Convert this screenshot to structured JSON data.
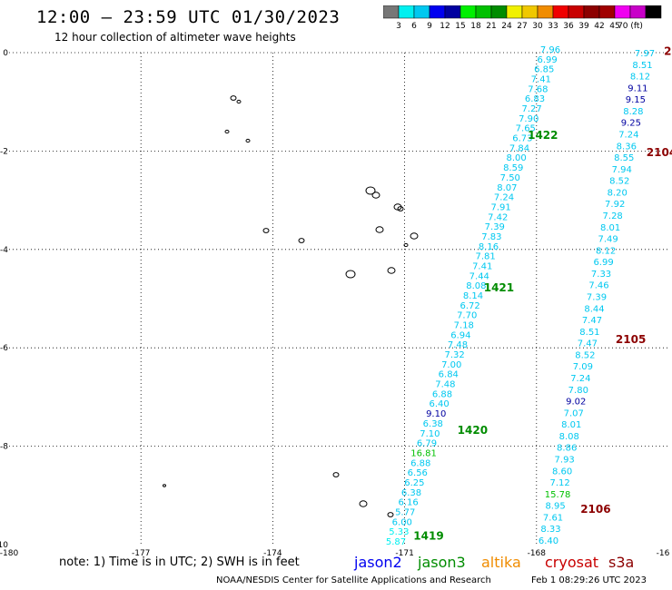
{
  "title": "12:00 – 23:59 UTC 01/30/2023",
  "subtitle": "12 hour collection of altimeter wave heights",
  "colorbar": {
    "colors": [
      "#777777",
      "#00f0f0",
      "#00c8f0",
      "#0000f0",
      "#0000a0",
      "#00f000",
      "#00c000",
      "#008c00",
      "#f0f000",
      "#f0c800",
      "#f08c00",
      "#f00000",
      "#c80000",
      "#8c0000",
      "#a00000",
      "#f000f0",
      "#c800c8",
      "#000000"
    ],
    "labels": [
      "3",
      "6",
      "9",
      "12",
      "15",
      "18",
      "21",
      "24",
      "27",
      "30",
      "33",
      "36",
      "39",
      "42",
      "45",
      "70 (ft)"
    ]
  },
  "axes": {
    "x_ticks": [
      "-180",
      "-177",
      "-174",
      "-171",
      "-168",
      "-16"
    ],
    "y_ticks": [
      "0",
      "-2",
      "-4",
      "-6",
      "-8",
      "-10"
    ],
    "x_range": [
      -180,
      -165
    ],
    "y_range": [
      -10,
      0
    ]
  },
  "passes": [
    {
      "label": "1422",
      "lon": -168.2,
      "lat": -1.75,
      "color": "#008c00"
    },
    {
      "label": "1421",
      "lon": -169.2,
      "lat": -4.85,
      "color": "#008c00"
    },
    {
      "label": "1420",
      "lon": -169.8,
      "lat": -7.75,
      "color": "#008c00"
    },
    {
      "label": "1419",
      "lon": -170.8,
      "lat": -9.9,
      "color": "#008c00"
    },
    {
      "label": "2104",
      "lon": -165.5,
      "lat": -2.1,
      "color": "#8c0000"
    },
    {
      "label": "2105",
      "lon": -166.2,
      "lat": -5.9,
      "color": "#8c0000"
    },
    {
      "label": "2106",
      "lon": -167.0,
      "lat": -9.35,
      "color": "#8c0000"
    },
    {
      "label": "2",
      "lon": -165.1,
      "lat": -0.05,
      "color": "#8c0000"
    }
  ],
  "track_a": {
    "values": [
      "7.96",
      "6.99",
      "6.85",
      "7.41",
      "7.68",
      "6.83",
      "7.27",
      "7.90",
      "7.65",
      "6.73",
      "7.84",
      "8.00",
      "8.59",
      "7.50",
      "8.07",
      "7.24",
      "7.91",
      "7.42",
      "7.39",
      "7.83",
      "8.16",
      "7.81",
      "7.41",
      "7.44",
      "8.08",
      "8.14",
      "6.72",
      "7.70",
      "7.18",
      "6.94",
      "7.48",
      "7.32",
      "7.00",
      "6.84",
      "7.48",
      "6.88",
      "6.40",
      "9.10",
      "6.38",
      "7.10",
      "6.79",
      "16.81",
      "6.88",
      "6.56",
      "6.25",
      "6.38",
      "6.16",
      "5.77",
      "6.00",
      "5.33",
      "5.87"
    ],
    "colors": [
      "#00c8f0",
      "#00c8f0",
      "#00c8f0",
      "#00c8f0",
      "#00c8f0",
      "#00c8f0",
      "#00c8f0",
      "#00c8f0",
      "#00c8f0",
      "#00c8f0",
      "#00c8f0",
      "#00c8f0",
      "#00c8f0",
      "#00c8f0",
      "#00c8f0",
      "#00c8f0",
      "#00c8f0",
      "#00c8f0",
      "#00c8f0",
      "#00c8f0",
      "#00c8f0",
      "#00c8f0",
      "#00c8f0",
      "#00c8f0",
      "#00c8f0",
      "#00c8f0",
      "#00c8f0",
      "#00c8f0",
      "#00c8f0",
      "#00c8f0",
      "#00c8f0",
      "#00c8f0",
      "#00c8f0",
      "#00c8f0",
      "#00c8f0",
      "#00c8f0",
      "#00c8f0",
      "#0000a0",
      "#00c8f0",
      "#00c8f0",
      "#00c8f0",
      "#00c000",
      "#00c8f0",
      "#00c8f0",
      "#00c8f0",
      "#00c8f0",
      "#00c8f0",
      "#00c8f0",
      "#00c8f0",
      "#00f0f0",
      "#00f0f0"
    ]
  },
  "track_b": {
    "values": [
      "7.97",
      "8.51",
      "8.12",
      "9.11",
      "9.15",
      "8.28",
      "9.25",
      "7.24",
      "8.36",
      "8.55",
      "7.94",
      "8.52",
      "8.20",
      "7.92",
      "7.28",
      "8.01",
      "7.49",
      "8.12",
      "6.99",
      "7.33",
      "7.46",
      "7.39",
      "8.44",
      "7.47",
      "8.51",
      "7.47",
      "8.52",
      "7.09",
      "7.24",
      "7.80",
      "9.02",
      "7.07",
      "8.01",
      "8.08",
      "8.86",
      "7.93",
      "8.60",
      "7.12",
      "15.78",
      "8.95",
      "7.61",
      "8.33",
      "6.40"
    ],
    "colors": [
      "#00c8f0",
      "#00c8f0",
      "#00c8f0",
      "#0000a0",
      "#0000a0",
      "#00c8f0",
      "#0000a0",
      "#00c8f0",
      "#00c8f0",
      "#00c8f0",
      "#00c8f0",
      "#00c8f0",
      "#00c8f0",
      "#00c8f0",
      "#00c8f0",
      "#00c8f0",
      "#00c8f0",
      "#00c8f0",
      "#00c8f0",
      "#00c8f0",
      "#00c8f0",
      "#00c8f0",
      "#00c8f0",
      "#00c8f0",
      "#00c8f0",
      "#00c8f0",
      "#00c8f0",
      "#00c8f0",
      "#00c8f0",
      "#00c8f0",
      "#0000a0",
      "#00c8f0",
      "#00c8f0",
      "#00c8f0",
      "#00c8f0",
      "#00c8f0",
      "#00c8f0",
      "#00c8f0",
      "#00c000",
      "#00c8f0",
      "#00c8f0",
      "#00c8f0",
      "#00c8f0"
    ]
  },
  "note": "note:  1) Time is in UTC;  2) SWH is in feet",
  "satellites": [
    {
      "name": "jason2",
      "color": "#0000f0"
    },
    {
      "name": "jason3",
      "color": "#008c00"
    },
    {
      "name": "altika",
      "color": "#f08c00"
    },
    {
      "name": "cryosat",
      "color": "#c80000"
    },
    {
      "name": "s3a",
      "color": "#8c0000"
    }
  ],
  "credit": "NOAA/NESDIS Center for Satellite Applications and Research",
  "credit_time": "Feb  1 08:29:26 UTC 2023"
}
